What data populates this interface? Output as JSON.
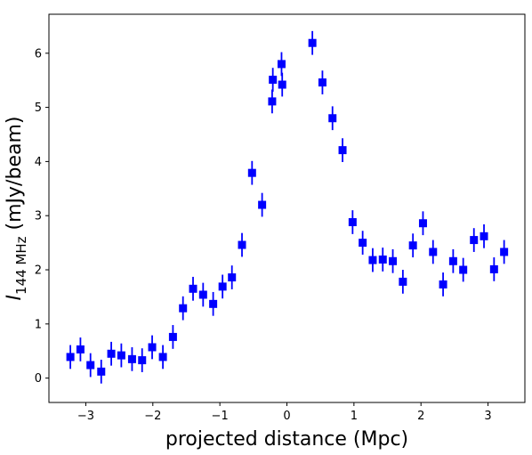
{
  "chart_data": {
    "type": "scatter",
    "xlabel": "projected distance (Mpc)",
    "ylabel": {
      "symbol": "I",
      "subscript": "144 MHz",
      "unit": " (mJy/beam)"
    },
    "xlim": [
      -3.55,
      3.55
    ],
    "ylim": [
      -0.45,
      6.72
    ],
    "xticks": [
      -3,
      -2,
      -1,
      0,
      1,
      2,
      3
    ],
    "xtick_labels": [
      "−3",
      "−2",
      "−1",
      "0",
      "1",
      "2",
      "3"
    ],
    "yticks": [
      0,
      1,
      2,
      3,
      4,
      5,
      6
    ],
    "ytick_labels": [
      "0",
      "1",
      "2",
      "3",
      "4",
      "5",
      "6"
    ],
    "grid": false,
    "marker": "square",
    "color": "#0000ff",
    "errbar_color": "#0000ff",
    "points": [
      {
        "x": -3.23,
        "y": 0.39,
        "err": 0.22
      },
      {
        "x": -3.08,
        "y": 0.53,
        "err": 0.22
      },
      {
        "x": -2.93,
        "y": 0.24,
        "err": 0.22
      },
      {
        "x": -2.77,
        "y": 0.12,
        "err": 0.22
      },
      {
        "x": -2.62,
        "y": 0.45,
        "err": 0.22
      },
      {
        "x": -2.47,
        "y": 0.42,
        "err": 0.22
      },
      {
        "x": -2.31,
        "y": 0.35,
        "err": 0.22
      },
      {
        "x": -2.16,
        "y": 0.33,
        "err": 0.22
      },
      {
        "x": -2.01,
        "y": 0.57,
        "err": 0.22
      },
      {
        "x": -1.85,
        "y": 0.39,
        "err": 0.22
      },
      {
        "x": -1.7,
        "y": 0.76,
        "err": 0.22
      },
      {
        "x": -1.55,
        "y": 1.29,
        "err": 0.22
      },
      {
        "x": -1.4,
        "y": 1.65,
        "err": 0.22
      },
      {
        "x": -1.25,
        "y": 1.54,
        "err": 0.22
      },
      {
        "x": -1.1,
        "y": 1.37,
        "err": 0.22
      },
      {
        "x": -0.96,
        "y": 1.69,
        "err": 0.22
      },
      {
        "x": -0.82,
        "y": 1.86,
        "err": 0.22
      },
      {
        "x": -0.67,
        "y": 2.46,
        "err": 0.22
      },
      {
        "x": -0.52,
        "y": 3.79,
        "err": 0.22
      },
      {
        "x": -0.37,
        "y": 3.2,
        "err": 0.22
      },
      {
        "x": -0.22,
        "y": 5.11,
        "err": 0.22
      },
      {
        "x": -0.21,
        "y": 5.51,
        "err": 0.22
      },
      {
        "x": -0.08,
        "y": 5.8,
        "err": 0.22
      },
      {
        "x": -0.07,
        "y": 5.42,
        "err": 0.22
      },
      {
        "x": 0.38,
        "y": 6.19,
        "err": 0.22
      },
      {
        "x": 0.53,
        "y": 5.46,
        "err": 0.22
      },
      {
        "x": 0.68,
        "y": 4.8,
        "err": 0.22
      },
      {
        "x": 0.83,
        "y": 4.21,
        "err": 0.22
      },
      {
        "x": 0.98,
        "y": 2.88,
        "err": 0.22
      },
      {
        "x": 1.13,
        "y": 2.5,
        "err": 0.22
      },
      {
        "x": 1.28,
        "y": 2.18,
        "err": 0.22
      },
      {
        "x": 1.43,
        "y": 2.19,
        "err": 0.22
      },
      {
        "x": 1.58,
        "y": 2.16,
        "err": 0.22
      },
      {
        "x": 1.73,
        "y": 1.78,
        "err": 0.22
      },
      {
        "x": 1.88,
        "y": 2.45,
        "err": 0.22
      },
      {
        "x": 2.03,
        "y": 2.86,
        "err": 0.22
      },
      {
        "x": 2.18,
        "y": 2.33,
        "err": 0.22
      },
      {
        "x": 2.33,
        "y": 1.73,
        "err": 0.22
      },
      {
        "x": 2.48,
        "y": 2.16,
        "err": 0.22
      },
      {
        "x": 2.63,
        "y": 2.0,
        "err": 0.22
      },
      {
        "x": 2.79,
        "y": 2.55,
        "err": 0.22
      },
      {
        "x": 2.94,
        "y": 2.62,
        "err": 0.22
      },
      {
        "x": 3.09,
        "y": 2.01,
        "err": 0.22
      },
      {
        "x": 3.24,
        "y": 2.33,
        "err": 0.22
      }
    ]
  }
}
